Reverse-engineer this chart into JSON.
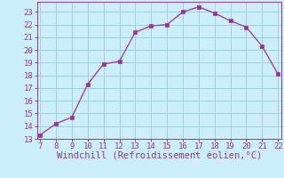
{
  "x": [
    7,
    8,
    9,
    10,
    11,
    12,
    13,
    14,
    15,
    16,
    17,
    18,
    19,
    20,
    21,
    22
  ],
  "y": [
    13.3,
    14.2,
    14.7,
    17.3,
    18.9,
    19.1,
    21.4,
    21.9,
    22.0,
    23.0,
    23.4,
    22.9,
    22.3,
    21.8,
    20.3,
    18.1
  ],
  "xlim": [
    7,
    22
  ],
  "ylim": [
    13,
    23.8
  ],
  "xticks": [
    7,
    8,
    9,
    10,
    11,
    12,
    13,
    14,
    15,
    16,
    17,
    18,
    19,
    20,
    21,
    22
  ],
  "yticks": [
    13,
    14,
    15,
    16,
    17,
    18,
    19,
    20,
    21,
    22,
    23
  ],
  "line_color": "#993399",
  "marker_color": "#993399",
  "bg_color": "#cceeff",
  "grid_color": "#99cccc",
  "xlabel": "Windchill (Refroidissement éolien,°C)",
  "xlabel_color": "#993399",
  "tick_color": "#993399",
  "tick_fontsize": 6.5,
  "xlabel_fontsize": 7.5
}
